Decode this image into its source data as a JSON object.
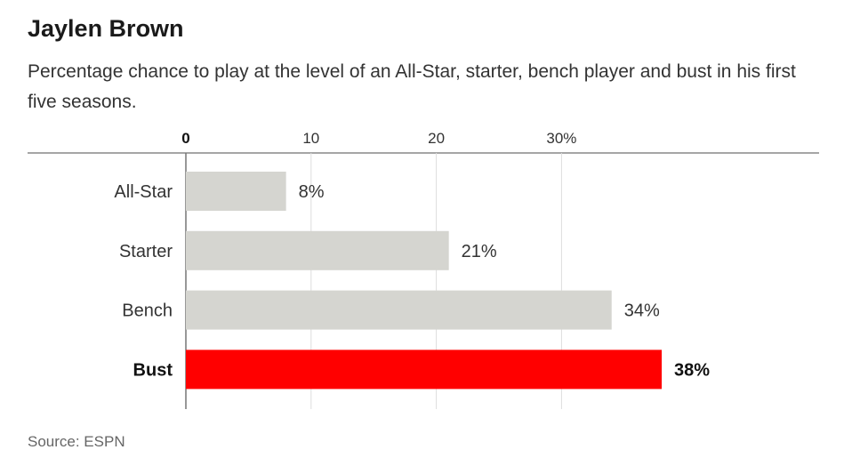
{
  "chart_data": {
    "type": "bar",
    "orientation": "horizontal",
    "title": "Jaylen Brown",
    "subtitle": "Percentage chance to play at the level of an All-Star, starter, bench player and bust in his first five seasons.",
    "source": "Source: ESPN",
    "categories": [
      "All-Star",
      "Starter",
      "Bench",
      "Bust"
    ],
    "values": [
      8,
      21,
      34,
      38
    ],
    "value_labels": [
      "8%",
      "21%",
      "34%",
      "38%"
    ],
    "highlight": "Bust",
    "xticks": [
      0,
      10,
      20,
      30
    ],
    "xtick_labels": [
      "0",
      "10",
      "20",
      "30%"
    ],
    "xlim": [
      0,
      40
    ],
    "grid": true,
    "colors": {
      "bar": "#d5d5d0",
      "highlight": "#ff0000",
      "grid": "#dddddd",
      "axis": "#888888"
    }
  }
}
